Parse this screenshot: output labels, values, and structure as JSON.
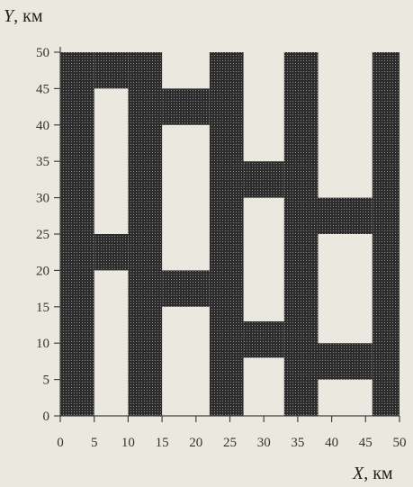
{
  "chart_data": {
    "type": "heatmap",
    "title": "",
    "ylabel_var": "Y",
    "ylabel_unit": ", км",
    "xlabel_var": "X",
    "xlabel_unit": ", км",
    "xlim": [
      0,
      50
    ],
    "ylim": [
      0,
      50
    ],
    "xticks": [
      "0",
      "5",
      "10",
      "15",
      "20",
      "25",
      "30",
      "35",
      "40",
      "45",
      "50"
    ],
    "yticks": [
      "0",
      "5",
      "10",
      "15",
      "20",
      "25",
      "30",
      "35",
      "40",
      "45",
      "50"
    ],
    "grid": false,
    "colors": {
      "shaded": "#3b3b3b",
      "empty": "#ffffff",
      "axis": "#444444"
    },
    "shaded_regions": [
      {
        "name": "band-1",
        "polygon": [
          [
            0,
            0
          ],
          [
            5,
            0
          ],
          [
            5,
            50
          ],
          [
            0,
            50
          ]
        ]
      },
      {
        "name": "band-2",
        "polygon": [
          [
            10,
            0
          ],
          [
            15,
            0
          ],
          [
            15,
            50
          ],
          [
            10,
            50
          ]
        ]
      },
      {
        "name": "band-3",
        "polygon": [
          [
            22,
            0
          ],
          [
            27,
            0
          ],
          [
            27,
            50
          ],
          [
            22,
            50
          ]
        ]
      },
      {
        "name": "band-4",
        "polygon": [
          [
            33,
            0
          ],
          [
            38,
            0
          ],
          [
            38,
            50
          ],
          [
            33,
            50
          ]
        ]
      },
      {
        "name": "band-5",
        "polygon": [
          [
            46,
            0
          ],
          [
            50,
            0
          ],
          [
            50,
            50
          ],
          [
            46,
            50
          ]
        ]
      },
      {
        "name": "bridge-1",
        "polygon": [
          [
            5,
            45
          ],
          [
            10,
            45
          ],
          [
            10,
            50
          ],
          [
            5,
            50
          ]
        ]
      },
      {
        "name": "bridge-2",
        "polygon": [
          [
            5,
            20
          ],
          [
            10,
            20
          ],
          [
            10,
            25
          ],
          [
            5,
            25
          ]
        ]
      },
      {
        "name": "bridge-3",
        "polygon": [
          [
            15,
            40
          ],
          [
            22,
            40
          ],
          [
            22,
            45
          ],
          [
            15,
            45
          ]
        ]
      },
      {
        "name": "bridge-4",
        "polygon": [
          [
            15,
            15
          ],
          [
            22,
            15
          ],
          [
            22,
            20
          ],
          [
            15,
            20
          ]
        ]
      },
      {
        "name": "bridge-5",
        "polygon": [
          [
            27,
            30
          ],
          [
            33,
            30
          ],
          [
            33,
            35
          ],
          [
            27,
            35
          ]
        ]
      },
      {
        "name": "bridge-6",
        "polygon": [
          [
            27,
            8
          ],
          [
            33,
            8
          ],
          [
            33,
            13
          ],
          [
            27,
            13
          ]
        ]
      },
      {
        "name": "bridge-7",
        "polygon": [
          [
            38,
            25
          ],
          [
            46,
            25
          ],
          [
            46,
            30
          ],
          [
            38,
            30
          ]
        ]
      },
      {
        "name": "bridge-8",
        "polygon": [
          [
            38,
            5
          ],
          [
            46,
            5
          ],
          [
            46,
            10
          ],
          [
            38,
            10
          ]
        ]
      }
    ]
  }
}
